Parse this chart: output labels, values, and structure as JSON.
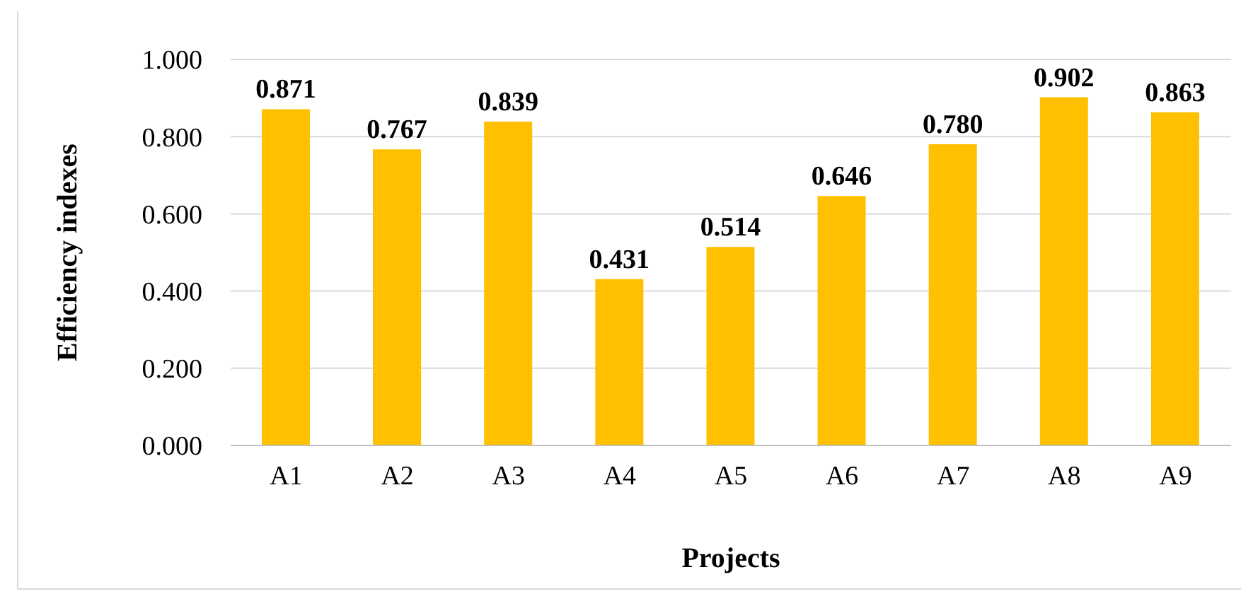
{
  "chart_data": {
    "type": "bar",
    "xlabel": "Projects",
    "ylabel": "Efficiency indexes",
    "categories": [
      "A1",
      "A2",
      "A3",
      "A4",
      "A5",
      "A6",
      "A7",
      "A8",
      "A9"
    ],
    "values": [
      0.871,
      0.767,
      0.839,
      0.431,
      0.514,
      0.646,
      0.78,
      0.902,
      0.863
    ],
    "value_labels": [
      "0.871",
      "0.767",
      "0.839",
      "0.431",
      "0.514",
      "0.646",
      "0.780",
      "0.902",
      "0.863"
    ],
    "color": "#ffc000",
    "ylim": [
      0,
      1
    ],
    "yticks": [
      {
        "value": 0,
        "label": "0.000"
      },
      {
        "value": 0.2,
        "label": "0.200"
      },
      {
        "value": 0.4,
        "label": "0.400"
      },
      {
        "value": 0.6,
        "label": "0.600"
      },
      {
        "value": 0.8,
        "label": "0.800"
      },
      {
        "value": 1,
        "label": "1.000"
      }
    ],
    "grid": "y"
  }
}
